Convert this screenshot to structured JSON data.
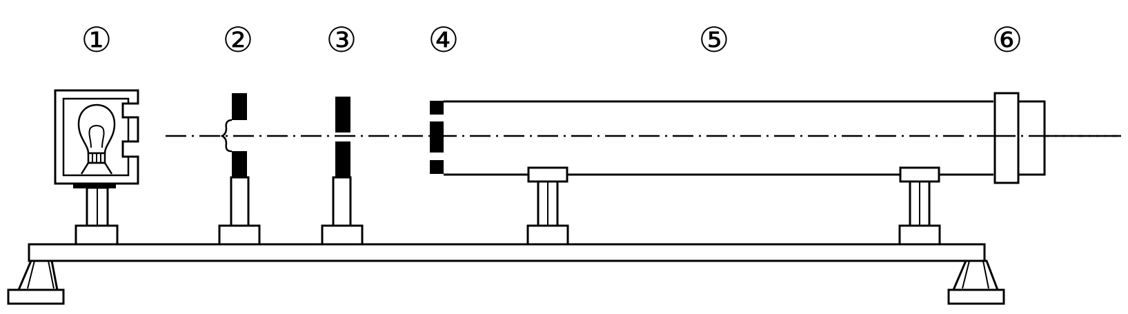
{
  "labels": {
    "light_source": "①",
    "filter": "②",
    "single_slit": "③",
    "double_slit": "④",
    "hood_tube": "⑤",
    "eyepiece": "⑥"
  },
  "colors": {
    "ink": "#000000",
    "background": "#ffffff"
  }
}
